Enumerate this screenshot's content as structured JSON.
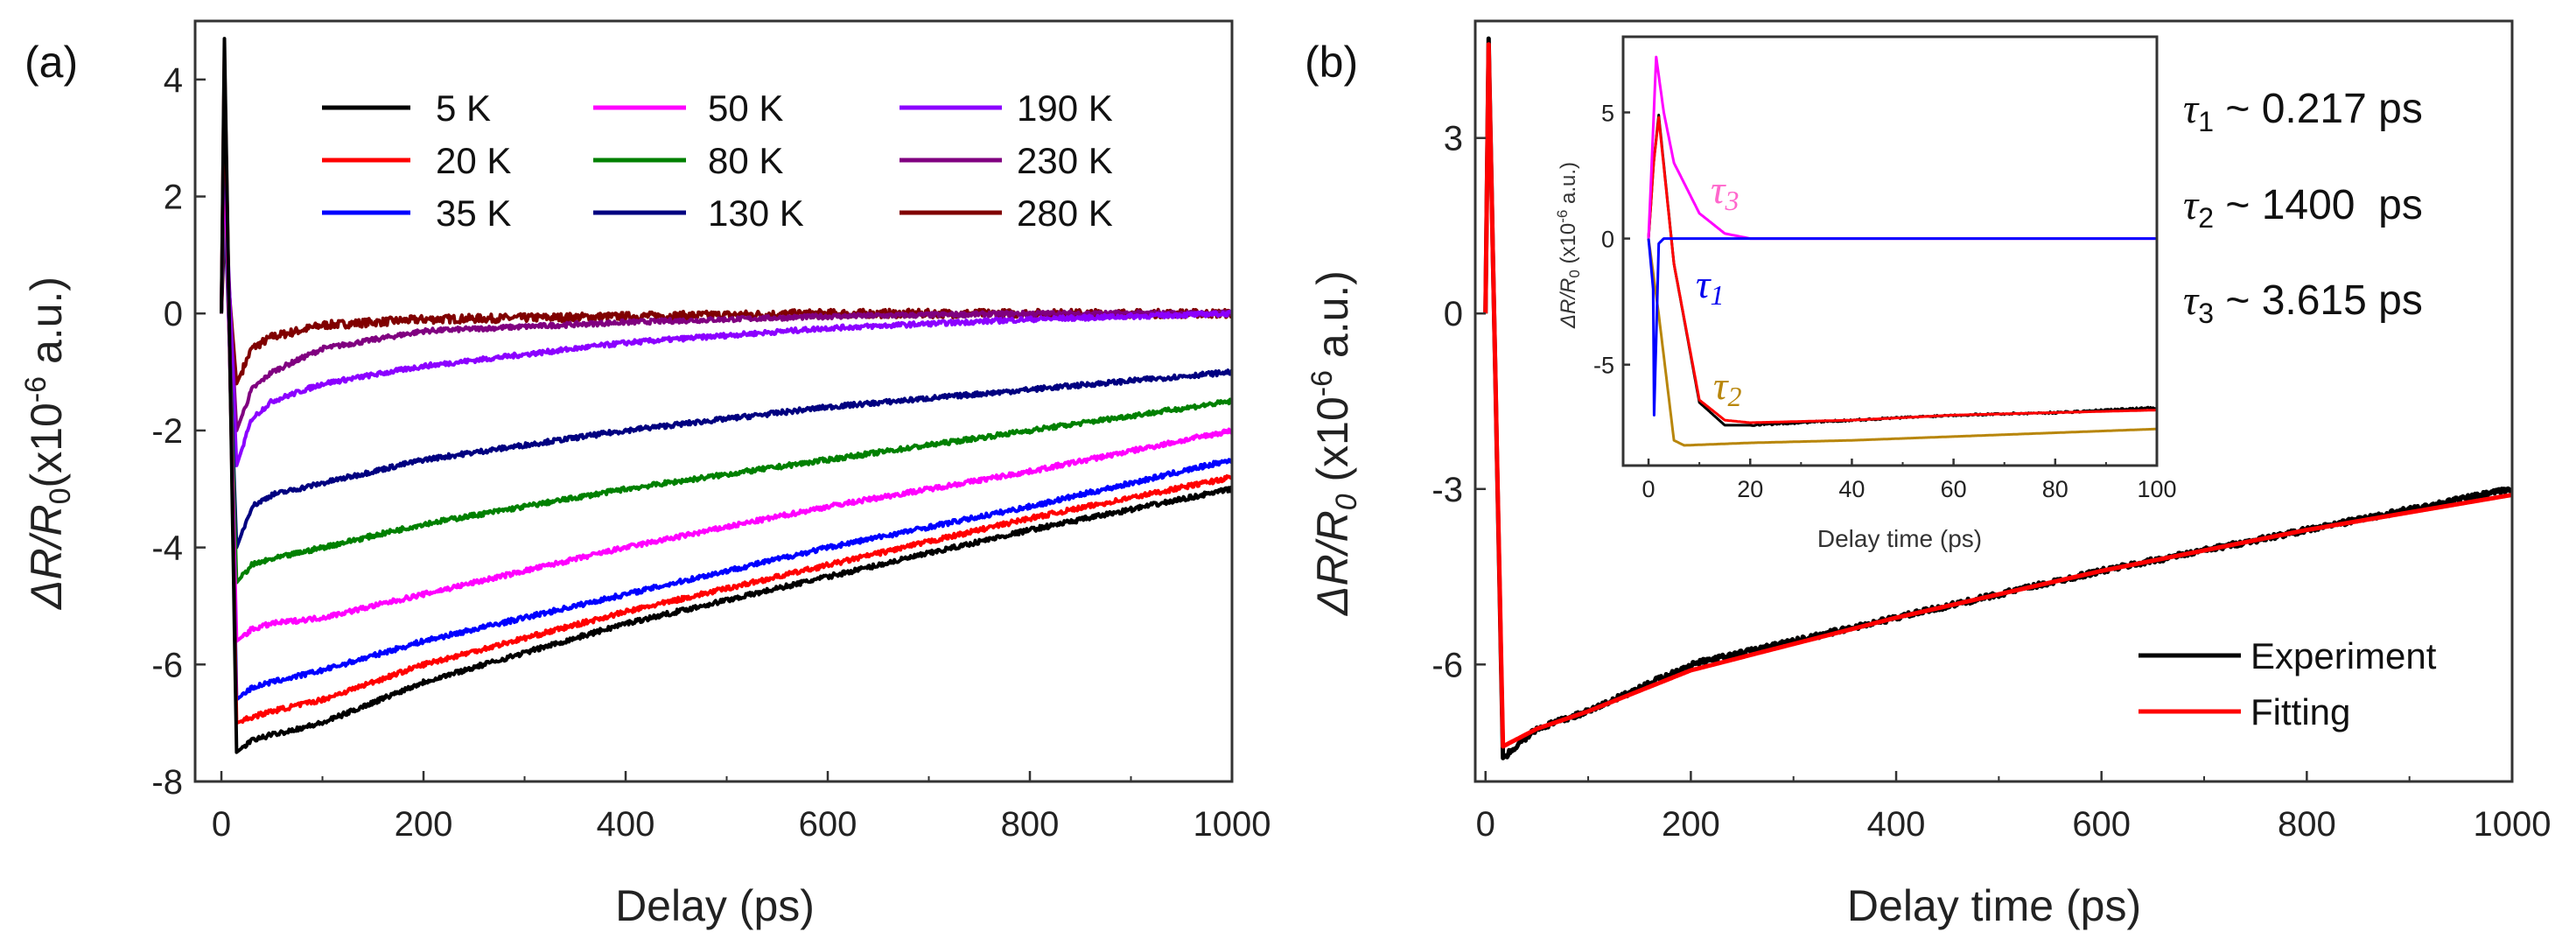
{
  "chart_data": [
    {
      "type": "line",
      "panel_label": "(a)",
      "xlabel": "Delay (ps)",
      "ylabel_parts": {
        "main": "ΔR/R",
        "sub": "0",
        "mid": "(x10",
        "sup": "-6",
        "end": " a.u.)"
      },
      "xlim": [
        -26,
        1000
      ],
      "ylim": [
        -8,
        5
      ],
      "xticks": [
        0,
        200,
        400,
        600,
        800,
        1000
      ],
      "yticks": [
        4,
        2,
        0,
        -2,
        -4,
        -6,
        -8
      ],
      "grid": false,
      "legend_placement": "top",
      "x": [
        0,
        3,
        15,
        30,
        50,
        100,
        200,
        400,
        600,
        800,
        1000
      ],
      "series": [
        {
          "name": "5 K",
          "color": "#000000",
          "values": [
            0,
            4.7,
            -7.5,
            -7.3,
            -7.2,
            -7.0,
            -6.3,
            -5.3,
            -4.5,
            -3.7,
            -3.0
          ]
        },
        {
          "name": "20 K",
          "color": "#ff0000",
          "values": [
            0,
            4.4,
            -7.0,
            -6.9,
            -6.8,
            -6.6,
            -6.0,
            -5.1,
            -4.3,
            -3.5,
            -2.8
          ]
        },
        {
          "name": "35 K",
          "color": "#0000ff",
          "values": [
            0,
            4.0,
            -6.6,
            -6.4,
            -6.3,
            -6.1,
            -5.6,
            -4.8,
            -4.0,
            -3.3,
            -2.5
          ]
        },
        {
          "name": "50 K",
          "color": "#ff00ff",
          "values": [
            0,
            3.0,
            -5.6,
            -5.4,
            -5.3,
            -5.2,
            -4.8,
            -4.0,
            -3.3,
            -2.7,
            -2.0
          ]
        },
        {
          "name": "80 K",
          "color": "#008000",
          "values": [
            0,
            2.5,
            -4.6,
            -4.3,
            -4.2,
            -4.0,
            -3.6,
            -3.0,
            -2.5,
            -2.0,
            -1.5
          ]
        },
        {
          "name": "130 K",
          "color": "#000080",
          "values": [
            0,
            2.0,
            -4.0,
            -3.3,
            -3.1,
            -2.9,
            -2.5,
            -2.0,
            -1.6,
            -1.3,
            -1.0
          ]
        },
        {
          "name": "190 K",
          "color": "#8b00ff",
          "values": [
            0,
            2.5,
            -2.6,
            -1.8,
            -1.5,
            -1.2,
            -0.9,
            -0.5,
            -0.25,
            -0.1,
            0.0
          ]
        },
        {
          "name": "230 K",
          "color": "#800080",
          "values": [
            0,
            2.0,
            -2.0,
            -1.3,
            -1.0,
            -0.6,
            -0.3,
            -0.15,
            -0.05,
            0.0,
            0.0
          ]
        },
        {
          "name": "280 K",
          "color": "#800000",
          "values": [
            0,
            1.4,
            -1.2,
            -0.6,
            -0.4,
            -0.2,
            -0.1,
            -0.05,
            0.0,
            0.0,
            0.0
          ]
        }
      ]
    },
    {
      "type": "line",
      "panel_label": "(b)",
      "xlabel": "Delay time (ps)",
      "ylabel_parts": {
        "main": "ΔR/R",
        "sub": "0",
        "mid": " (x10",
        "sup": "-6",
        "end": " a.u.)"
      },
      "xlim": [
        -10,
        1000
      ],
      "ylim": [
        -8,
        5
      ],
      "xticks": [
        0,
        200,
        400,
        600,
        800,
        1000
      ],
      "yticks": [
        3,
        0,
        -3,
        -6
      ],
      "grid": false,
      "legend_placement": "bottom-right",
      "x": [
        0,
        3,
        17,
        50,
        100,
        200,
        400,
        600,
        800,
        1000
      ],
      "series": [
        {
          "name": "Experiment",
          "color": "#000000",
          "values": [
            0,
            4.7,
            -7.6,
            -7.1,
            -6.8,
            -6.0,
            -5.2,
            -4.4,
            -3.7,
            -3.0
          ]
        },
        {
          "name": "Fitting",
          "color": "#ff0000",
          "values": [
            0,
            4.6,
            -7.4,
            -7.1,
            -6.8,
            -6.1,
            -5.2,
            -4.4,
            -3.7,
            -3.1
          ]
        }
      ],
      "annotations": [
        {
          "symbol": "τ",
          "sub": "1",
          "text": " ~ 0.217 ps"
        },
        {
          "symbol": "τ",
          "sub": "2",
          "text": " ~ 1400  ps"
        },
        {
          "symbol": "τ",
          "sub": "3",
          "text": " ~ 3.615 ps"
        }
      ]
    },
    {
      "type": "line",
      "panel_label": "inset",
      "xlabel": "Delay time (ps)",
      "ylabel_parts": {
        "main": "ΔR/R",
        "sub": "0",
        "mid": " (x10",
        "sup": "-6",
        "end": " a.u.)"
      },
      "xlim": [
        -5,
        100
      ],
      "ylim": [
        -9,
        8
      ],
      "xticks": [
        0,
        20,
        40,
        60,
        80,
        100
      ],
      "yticks": [
        5,
        0,
        -5
      ],
      "grid": false,
      "series": [
        {
          "name": "Experiment",
          "color": "#000000",
          "x": [
            0,
            1,
            2,
            5,
            10,
            15,
            20,
            40,
            60,
            80,
            100
          ],
          "values": [
            0,
            3,
            4.9,
            -1,
            -6.5,
            -7.4,
            -7.4,
            -7.2,
            -7.0,
            -6.9,
            -6.7
          ]
        },
        {
          "name": "Fitting",
          "color": "#ff0000",
          "x": [
            0,
            1,
            2,
            5,
            10,
            15,
            20,
            40,
            60,
            80,
            100
          ],
          "values": [
            0,
            3,
            4.8,
            -1,
            -6.4,
            -7.2,
            -7.3,
            -7.2,
            -7.0,
            -6.9,
            -6.8
          ]
        },
        {
          "name": "τ3",
          "label": "τ",
          "sub": "3",
          "color": "#ff00ff",
          "x": [
            0,
            1.5,
            3,
            5,
            10,
            15,
            20,
            100
          ],
          "values": [
            0,
            7.2,
            5.0,
            3.0,
            1.0,
            0.2,
            0,
            0
          ]
        },
        {
          "name": "τ1",
          "label": "τ",
          "sub": "1",
          "color": "#0000ff",
          "x": [
            0,
            0.9,
            1.1,
            2,
            3,
            100
          ],
          "values": [
            0,
            -2,
            -7.0,
            -0.2,
            0,
            0
          ]
        },
        {
          "name": "τ2",
          "label": "τ",
          "sub": "2",
          "color": "#b8860b",
          "x": [
            0,
            2,
            5,
            7,
            20,
            40,
            60,
            80,
            100
          ],
          "values": [
            0,
            -3,
            -8.0,
            -8.2,
            -8.1,
            -8.0,
            -7.85,
            -7.7,
            -7.55
          ]
        }
      ]
    }
  ]
}
